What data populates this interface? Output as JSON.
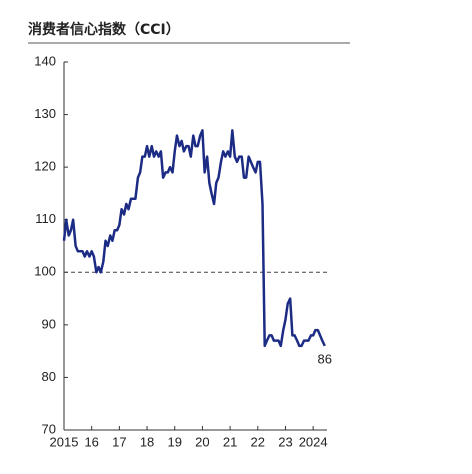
{
  "chart_data": {
    "type": "line",
    "title": "消费者信心指数（CCI）",
    "x": [
      2015,
      2015.08,
      2015.17,
      2015.25,
      2015.33,
      2015.42,
      2015.5,
      2015.58,
      2015.67,
      2015.75,
      2015.83,
      2015.92,
      2016,
      2016.08,
      2016.17,
      2016.25,
      2016.33,
      2016.42,
      2016.5,
      2016.58,
      2016.67,
      2016.75,
      2016.83,
      2016.92,
      2017,
      2017.08,
      2017.17,
      2017.25,
      2017.33,
      2017.42,
      2017.5,
      2017.58,
      2017.67,
      2017.75,
      2017.83,
      2017.92,
      2018,
      2018.08,
      2018.17,
      2018.25,
      2018.33,
      2018.42,
      2018.5,
      2018.58,
      2018.67,
      2018.75,
      2018.83,
      2018.92,
      2019,
      2019.08,
      2019.17,
      2019.25,
      2019.33,
      2019.42,
      2019.5,
      2019.58,
      2019.67,
      2019.75,
      2019.83,
      2019.92,
      2020,
      2020.08,
      2020.17,
      2020.25,
      2020.33,
      2020.42,
      2020.5,
      2020.58,
      2020.67,
      2020.75,
      2020.83,
      2020.92,
      2021,
      2021.08,
      2021.17,
      2021.25,
      2021.33,
      2021.42,
      2021.5,
      2021.58,
      2021.67,
      2021.75,
      2021.83,
      2021.92,
      2022,
      2022.08,
      2022.17,
      2022.25,
      2022.33,
      2022.42,
      2022.5,
      2022.58,
      2022.67,
      2022.75,
      2022.83,
      2022.92,
      2023,
      2023.08,
      2023.17,
      2023.25,
      2023.33,
      2023.42,
      2023.5,
      2023.58,
      2023.67,
      2023.75,
      2023.83,
      2023.92,
      2024,
      2024.08,
      2024.17,
      2024.25,
      2024.33,
      2024.42
    ],
    "series": [
      {
        "color": "#1c2c85",
        "values": [
          106,
          110,
          107,
          108,
          110,
          105,
          104,
          104,
          104,
          103,
          104,
          103,
          104,
          103,
          100,
          101,
          100,
          102,
          106,
          105,
          107,
          106,
          108,
          108,
          109,
          112,
          111,
          113,
          112,
          114,
          114,
          114,
          118,
          119,
          122,
          122,
          124,
          122,
          124,
          122,
          123,
          122,
          123,
          118,
          119,
          119,
          120,
          119,
          123,
          126,
          124,
          125,
          123,
          124,
          124,
          122,
          126,
          124,
          124,
          126,
          127,
          119,
          122,
          117,
          115,
          113,
          117,
          118,
          121,
          123,
          122,
          123,
          122,
          127,
          122,
          121,
          122,
          122,
          118,
          118,
          122,
          121,
          120,
          119,
          121,
          121,
          113,
          86,
          87,
          88,
          88,
          87,
          87,
          87,
          86,
          89,
          91,
          94,
          95,
          88,
          88,
          87,
          86,
          86,
          87,
          87,
          87,
          88,
          88,
          89,
          89,
          88,
          87,
          86
        ]
      }
    ],
    "reference_line": 100,
    "xlim": [
      2015,
      2024.5
    ],
    "xticks": [
      {
        "value": 2015,
        "label": "2015"
      },
      {
        "value": 2016,
        "label": "16"
      },
      {
        "value": 2017,
        "label": "17"
      },
      {
        "value": 2018,
        "label": "18"
      },
      {
        "value": 2019,
        "label": "19"
      },
      {
        "value": 2020,
        "label": "20"
      },
      {
        "value": 2021,
        "label": "21"
      },
      {
        "value": 2022,
        "label": "22"
      },
      {
        "value": 2023,
        "label": "23"
      },
      {
        "value": 2024,
        "label": "2024"
      }
    ],
    "ylim": [
      70,
      140
    ],
    "yticks": [
      70,
      80,
      90,
      100,
      110,
      120,
      130,
      140
    ]
  }
}
